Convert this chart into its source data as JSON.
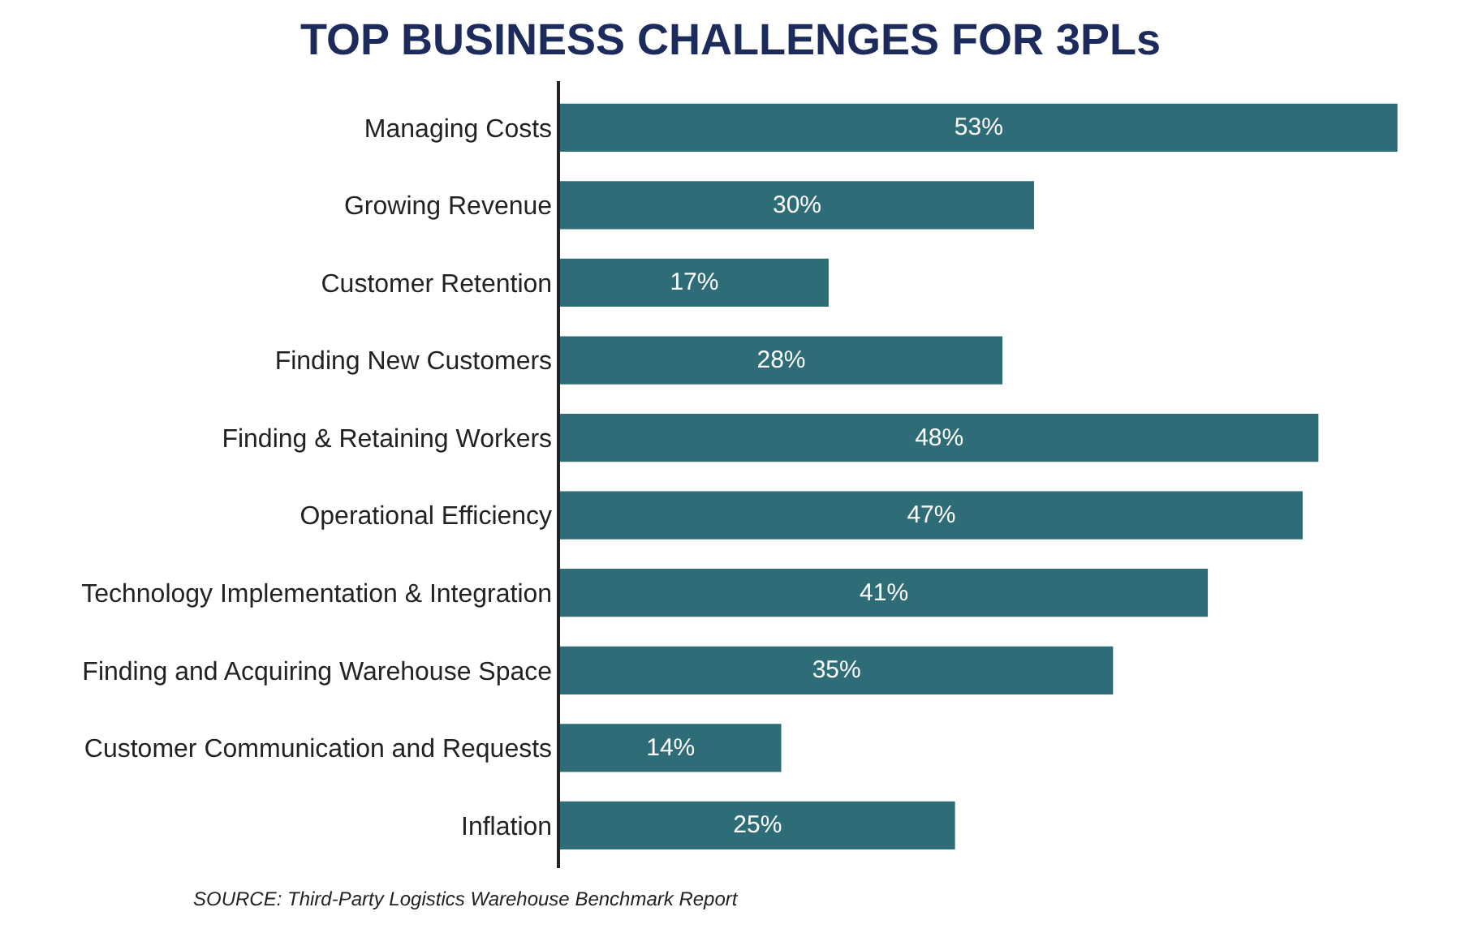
{
  "chart_data": {
    "type": "bar",
    "orientation": "horizontal",
    "title": "TOP BUSINESS CHALLENGES FOR 3PLs",
    "categories": [
      "Managing Costs",
      "Growing Revenue",
      "Customer Retention",
      "Finding New Customers",
      "Finding & Retaining Workers",
      "Operational Efficiency",
      "Technology Implementation & Integration",
      "Finding and Acquiring Warehouse Space",
      "Customer Communication and Requests",
      "Inflation"
    ],
    "values": [
      53,
      30,
      17,
      28,
      48,
      47,
      41,
      35,
      14,
      25
    ],
    "value_labels": [
      "53%",
      "30%",
      "17%",
      "28%",
      "48%",
      "47%",
      "41%",
      "35%",
      "14%",
      "25%"
    ],
    "color": "#2e6d77",
    "grid": false,
    "legend": false,
    "annotations": [
      "SOURCE: Third-Party Logistics Warehouse Benchmark Report"
    ]
  }
}
